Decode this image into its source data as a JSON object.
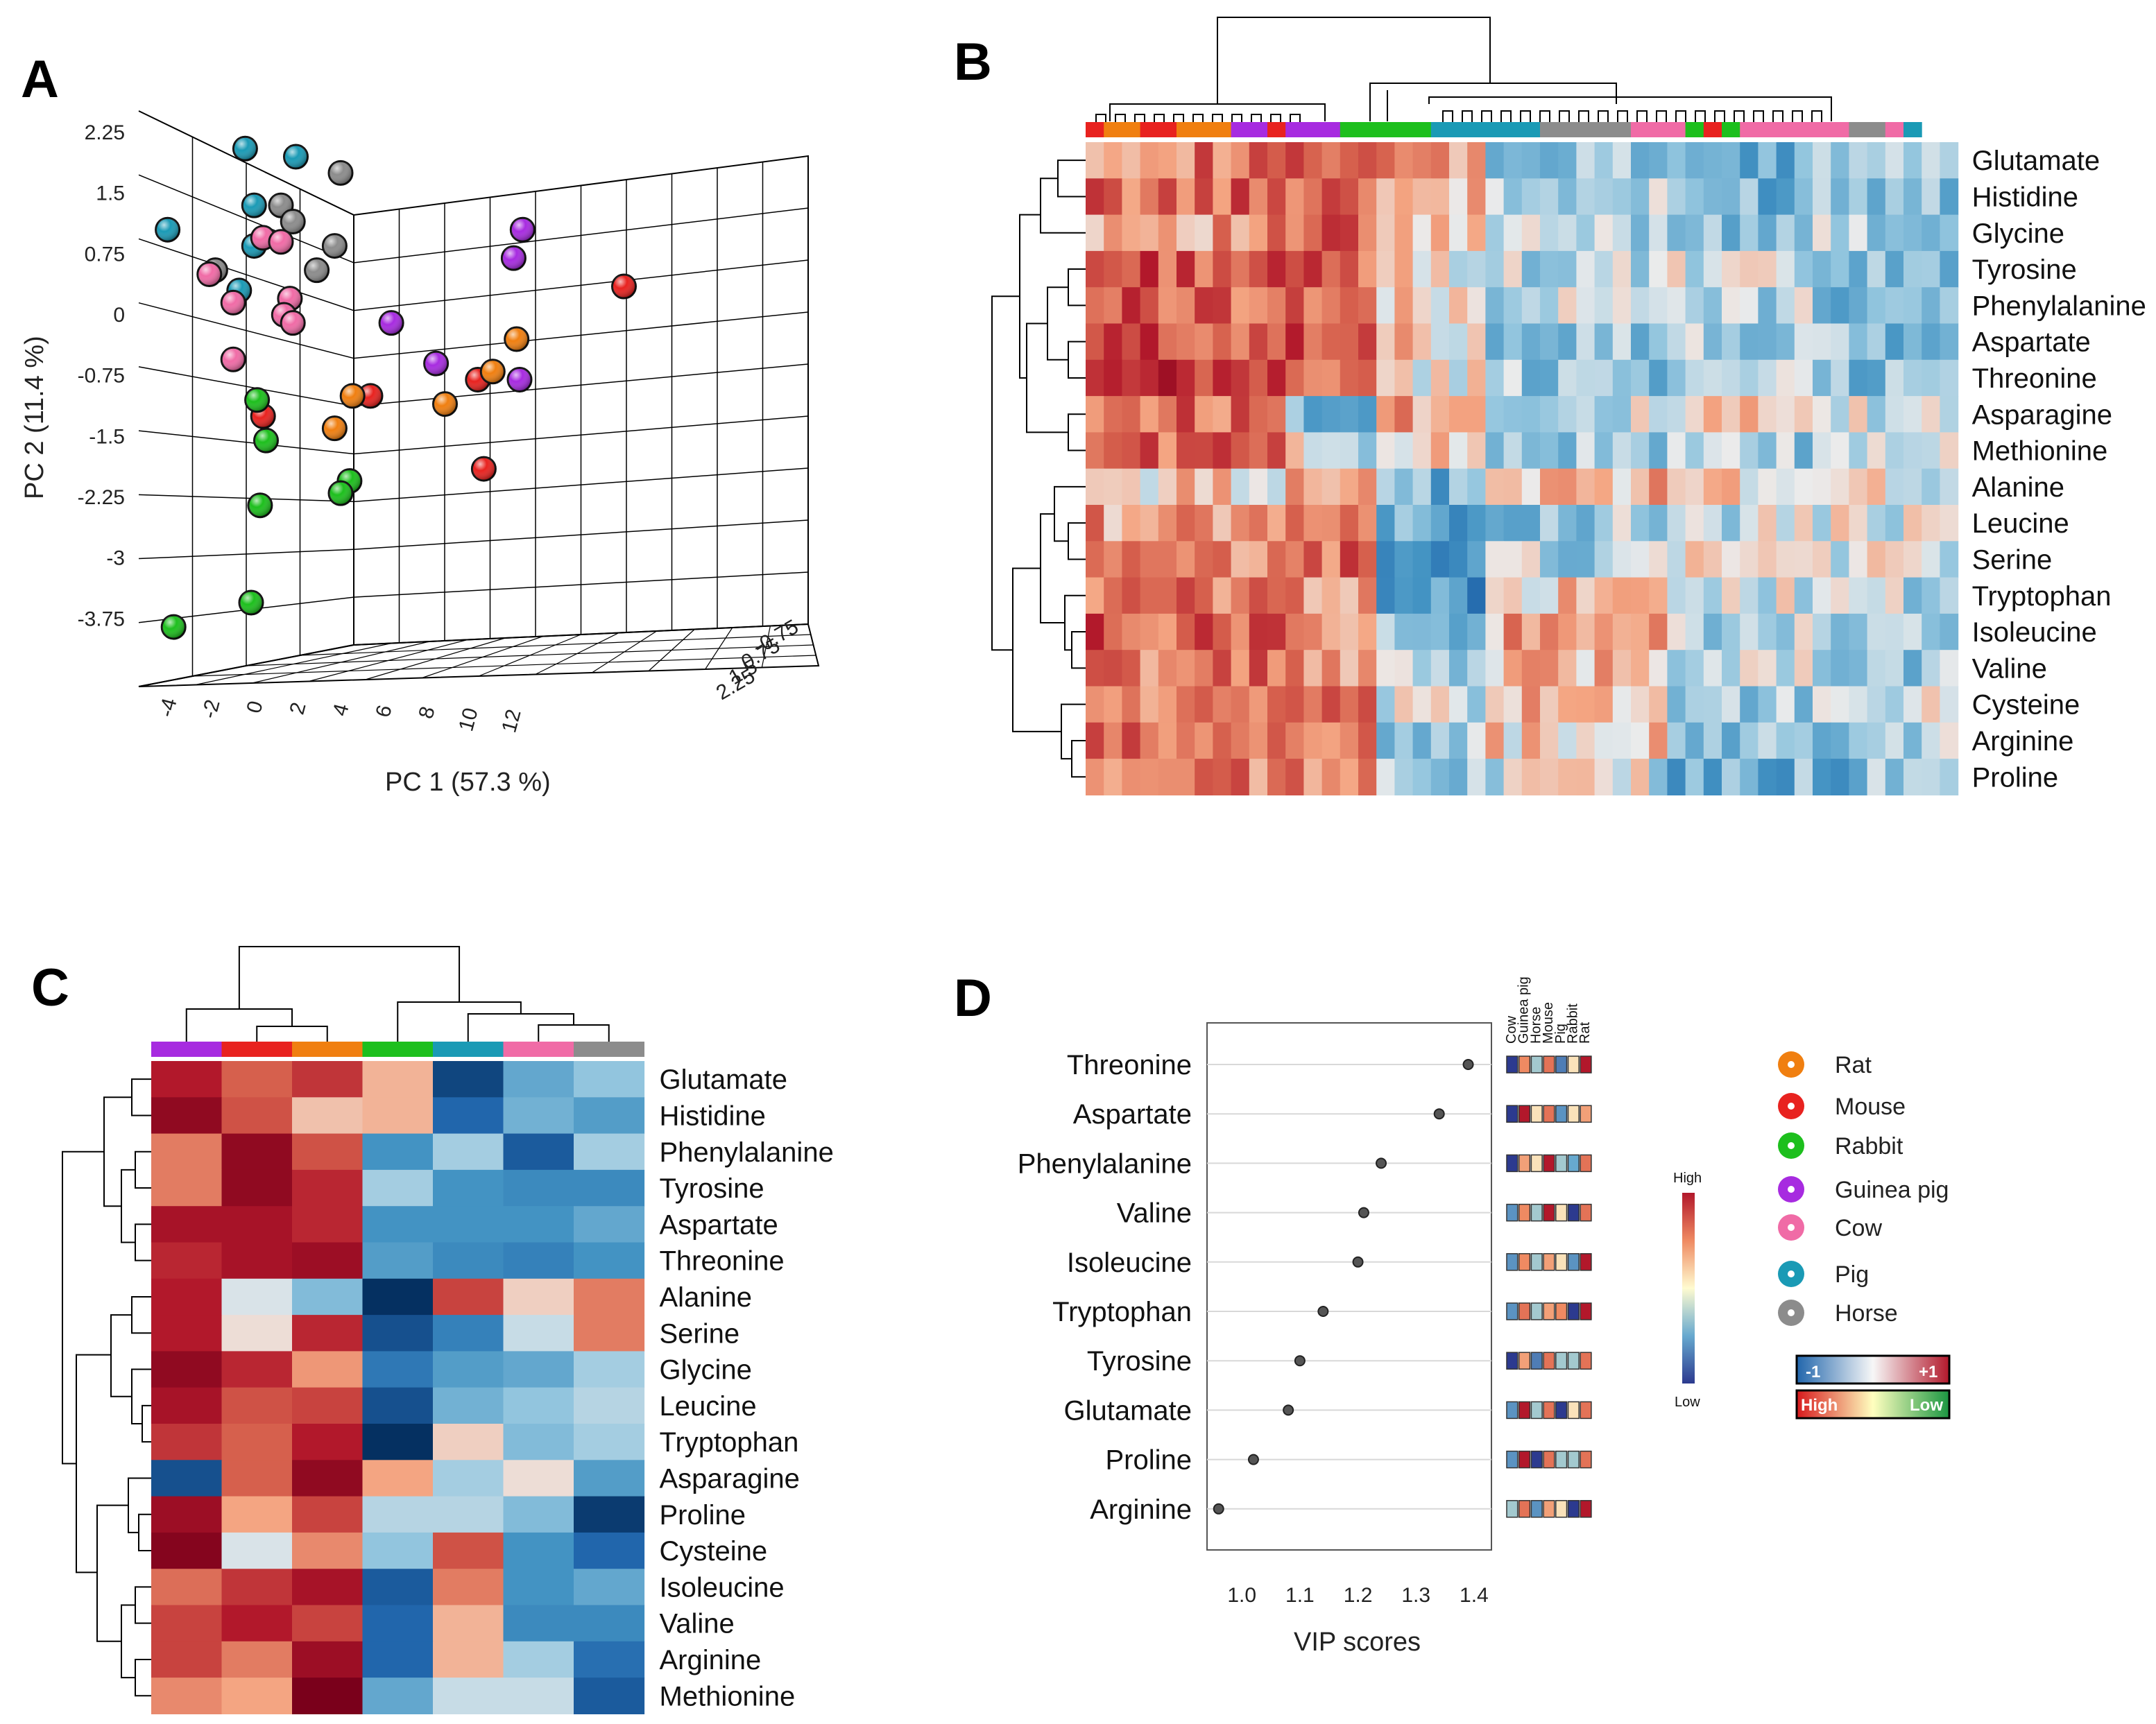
{
  "panels": {
    "a": "A",
    "b": "B",
    "c": "C",
    "d": "D"
  },
  "colors": {
    "Rat": "#f07f10",
    "Mouse": "#e8221f",
    "Rabbit": "#1dbf1d",
    "Guinea pig": "#a72be0",
    "Cow": "#f06ba6",
    "Pig": "#1a9ab5",
    "Horse": "#8c8c8c"
  },
  "chart_data": [
    {
      "type": "scatter",
      "title": "A",
      "xlabel": "PC 1 (57.3 %)",
      "ylabel": "PC 2 (11.4 %)",
      "x_ticks": [
        "-4",
        "-2",
        "0",
        "2",
        "4",
        "6",
        "8",
        "10",
        "12"
      ],
      "y_ticks": [
        "2.25",
        "1.5",
        "0.75",
        "0",
        "-0.75",
        "-1.5",
        "-2.25",
        "-3",
        "-3.75"
      ],
      "ylim": [
        -4.2,
        2.6
      ],
      "z_ticks": [
        "2.25",
        "1.5",
        "0.75",
        "-0.75"
      ],
      "points": [
        {
          "group": "Pig",
          "x": -3.8,
          "y": 1.05
        },
        {
          "group": "Pig",
          "x": -1.2,
          "y": 2.05
        },
        {
          "group": "Pig",
          "x": -0.9,
          "y": 1.35
        },
        {
          "group": "Pig",
          "x": 0.5,
          "y": 1.95
        },
        {
          "group": "Pig",
          "x": -0.9,
          "y": 0.85
        },
        {
          "group": "Pig",
          "x": -1.4,
          "y": 0.3
        },
        {
          "group": "Horse",
          "x": 2.0,
          "y": 1.75
        },
        {
          "group": "Horse",
          "x": 0.0,
          "y": 1.35
        },
        {
          "group": "Horse",
          "x": 0.4,
          "y": 1.15
        },
        {
          "group": "Horse",
          "x": 1.8,
          "y": 0.85
        },
        {
          "group": "Horse",
          "x": 1.2,
          "y": 0.55
        },
        {
          "group": "Horse",
          "x": -2.2,
          "y": 0.55
        },
        {
          "group": "Cow",
          "x": -2.4,
          "y": 0.5
        },
        {
          "group": "Cow",
          "x": -0.6,
          "y": 0.95
        },
        {
          "group": "Cow",
          "x": 0.0,
          "y": 0.9
        },
        {
          "group": "Cow",
          "x": 0.3,
          "y": 0.2
        },
        {
          "group": "Cow",
          "x": -1.6,
          "y": 0.15
        },
        {
          "group": "Cow",
          "x": 0.1,
          "y": 0.0
        },
        {
          "group": "Cow",
          "x": 0.4,
          "y": -0.1
        },
        {
          "group": "Cow",
          "x": -1.6,
          "y": -0.55
        },
        {
          "group": "Guinea pig",
          "x": 8.1,
          "y": 1.05
        },
        {
          "group": "Guinea pig",
          "x": 7.8,
          "y": 0.7
        },
        {
          "group": "Guinea pig",
          "x": 3.7,
          "y": -0.1
        },
        {
          "group": "Guinea pig",
          "x": 5.2,
          "y": -0.6
        },
        {
          "group": "Guinea pig",
          "x": 8.0,
          "y": -0.8
        },
        {
          "group": "Mouse",
          "x": 11.5,
          "y": 0.35
        },
        {
          "group": "Mouse",
          "x": 6.6,
          "y": -0.8
        },
        {
          "group": "Mouse",
          "x": 3.0,
          "y": -1.0
        },
        {
          "group": "Mouse",
          "x": -0.6,
          "y": -1.25
        },
        {
          "group": "Mouse",
          "x": 6.8,
          "y": -1.9
        },
        {
          "group": "Rat",
          "x": 7.9,
          "y": -0.3
        },
        {
          "group": "Rat",
          "x": 7.1,
          "y": -0.7
        },
        {
          "group": "Rat",
          "x": 2.4,
          "y": -1.0
        },
        {
          "group": "Rat",
          "x": 5.5,
          "y": -1.1
        },
        {
          "group": "Rat",
          "x": 1.8,
          "y": -1.4
        },
        {
          "group": "Rabbit",
          "x": -0.8,
          "y": -1.05
        },
        {
          "group": "Rabbit",
          "x": -0.5,
          "y": -1.55
        },
        {
          "group": "Rabbit",
          "x": 2.3,
          "y": -2.05
        },
        {
          "group": "Rabbit",
          "x": 2.0,
          "y": -2.2
        },
        {
          "group": "Rabbit",
          "x": -0.7,
          "y": -2.35
        },
        {
          "group": "Rabbit",
          "x": -1.0,
          "y": -3.55
        },
        {
          "group": "Rabbit",
          "x": -3.6,
          "y": -3.85
        }
      ]
    },
    {
      "type": "heatmap",
      "title": "B",
      "rows": [
        "Glutamate",
        "Histidine",
        "Glycine",
        "Tyrosine",
        "Phenylalanine",
        "Aspartate",
        "Threonine",
        "Asparagine",
        "Methionine",
        "Alanine",
        "Leucine",
        "Serine",
        "Tryptophan",
        "Isoleucine",
        "Valine",
        "Cysteine",
        "Arginine",
        "Proline"
      ],
      "column_groups": [
        "Mouse",
        "Rat",
        "Mouse",
        "Rat",
        "Guinea pig",
        "Mouse",
        "Guinea pig",
        "Rabbit",
        "Pig",
        "Horse",
        "Cow",
        "Rabbit",
        "Mouse",
        "Rabbit",
        "Cow",
        "Horse",
        "Cow",
        "Pig"
      ],
      "column_group_sizes": [
        1,
        2,
        2,
        3,
        2,
        1,
        3,
        5,
        6,
        5,
        3,
        1,
        1,
        1,
        6,
        2,
        1,
        1
      ],
      "block_means": [
        [
          0.4,
          0.5,
          0.25,
          -0.3,
          -0.4,
          -0.15
        ],
        [
          0.45,
          0.55,
          0.2,
          -0.2,
          -0.3,
          -0.2
        ],
        [
          0.3,
          0.45,
          0.1,
          -0.15,
          -0.2,
          -0.2
        ],
        [
          0.55,
          0.45,
          0.05,
          -0.15,
          -0.1,
          -0.35
        ],
        [
          0.5,
          0.45,
          0.05,
          -0.1,
          -0.15,
          -0.25
        ],
        [
          0.55,
          0.5,
          0.1,
          -0.2,
          -0.2,
          -0.3
        ],
        [
          0.6,
          0.45,
          0.0,
          -0.2,
          -0.2,
          -0.25
        ],
        [
          0.45,
          -0.25,
          0.3,
          -0.1,
          0.05,
          -0.1
        ],
        [
          0.5,
          -0.05,
          0.1,
          -0.2,
          -0.2,
          -0.15
        ],
        [
          0.1,
          0.35,
          -0.35,
          0.2,
          0.1,
          0.0
        ],
        [
          0.3,
          0.5,
          -0.4,
          -0.2,
          -0.1,
          -0.05
        ],
        [
          0.3,
          0.45,
          -0.45,
          -0.15,
          0.1,
          -0.05
        ],
        [
          0.4,
          0.35,
          -0.5,
          0.1,
          -0.05,
          -0.15
        ],
        [
          0.5,
          0.35,
          -0.3,
          0.25,
          -0.15,
          -0.3
        ],
        [
          0.4,
          0.35,
          -0.2,
          0.2,
          -0.05,
          -0.25
        ],
        [
          0.35,
          0.35,
          -0.1,
          0.2,
          -0.2,
          -0.1
        ],
        [
          0.4,
          0.4,
          -0.2,
          0.1,
          -0.3,
          -0.2
        ],
        [
          0.35,
          0.4,
          -0.2,
          -0.05,
          -0.35,
          -0.3
        ]
      ]
    },
    {
      "type": "heatmap",
      "title": "C",
      "columns": [
        "Guinea pig",
        "Mouse",
        "Rat",
        "Rabbit",
        "Pig",
        "Cow",
        "Horse"
      ],
      "rows": [
        "Glutamate",
        "Histidine",
        "Phenylalanine",
        "Tyrosine",
        "Aspartate",
        "Threonine",
        "Alanine",
        "Serine",
        "Glycine",
        "Leucine",
        "Tryptophan",
        "Asparagine",
        "Proline",
        "Cysteine",
        "Isoleucine",
        "Valine",
        "Arginine",
        "Methionine"
      ],
      "values": [
        [
          0.75,
          0.5,
          0.65,
          0.2,
          -0.9,
          -0.4,
          -0.25
        ],
        [
          0.9,
          0.55,
          0.15,
          0.2,
          -0.75,
          -0.35,
          -0.45
        ],
        [
          0.4,
          0.9,
          0.55,
          -0.5,
          -0.2,
          -0.8,
          -0.2
        ],
        [
          0.4,
          0.9,
          0.7,
          -0.2,
          -0.5,
          -0.55,
          -0.55
        ],
        [
          0.8,
          0.8,
          0.7,
          -0.5,
          -0.5,
          -0.5,
          -0.4
        ],
        [
          0.7,
          0.8,
          0.85,
          -0.45,
          -0.55,
          -0.6,
          -0.5
        ],
        [
          0.75,
          -0.05,
          -0.3,
          -1.0,
          0.6,
          0.1,
          0.4
        ],
        [
          0.75,
          0.05,
          0.7,
          -0.85,
          -0.6,
          -0.1,
          0.4
        ],
        [
          0.9,
          0.7,
          0.3,
          -0.65,
          -0.45,
          -0.4,
          -0.2
        ],
        [
          0.8,
          0.55,
          0.6,
          -0.85,
          -0.35,
          -0.25,
          -0.15
        ],
        [
          0.65,
          0.5,
          0.75,
          -1.0,
          0.1,
          -0.3,
          -0.2
        ],
        [
          -0.85,
          0.5,
          0.9,
          0.25,
          -0.2,
          0.05,
          -0.45
        ],
        [
          0.85,
          0.25,
          0.6,
          -0.15,
          -0.15,
          -0.3,
          -0.95
        ],
        [
          0.95,
          -0.05,
          0.35,
          -0.25,
          0.55,
          -0.5,
          -0.75
        ],
        [
          0.45,
          0.65,
          0.8,
          -0.8,
          0.4,
          -0.5,
          -0.4
        ],
        [
          0.6,
          0.75,
          0.6,
          -0.75,
          0.2,
          -0.55,
          -0.55
        ],
        [
          0.6,
          0.4,
          0.85,
          -0.75,
          0.2,
          -0.2,
          -0.7
        ],
        [
          0.35,
          0.25,
          1.0,
          -0.4,
          -0.1,
          -0.1,
          -0.8
        ]
      ]
    },
    {
      "type": "scatter",
      "title": "D",
      "xlabel": "VIP scores",
      "xlim": [
        0.94,
        1.43
      ],
      "x_ticks": [
        "1.0",
        "1.1",
        "1.2",
        "1.3",
        "1.4"
      ],
      "categories": [
        "Threonine",
        "Aspartate",
        "Phenylalanine",
        "Valine",
        "Isoleucine",
        "Tryptophan",
        "Tyrosine",
        "Glutamate",
        "Proline",
        "Arginine"
      ],
      "values": [
        1.39,
        1.34,
        1.24,
        1.21,
        1.2,
        1.14,
        1.1,
        1.08,
        1.02,
        0.96
      ],
      "mini_columns": [
        "Cow",
        "Guinea pig",
        "Horse",
        "Mouse",
        "Pig",
        "Rabbit",
        "Rat"
      ],
      "mini_heat": [
        [
          -1,
          0.5,
          -0.3,
          0.6,
          -0.7,
          0.1,
          1
        ],
        [
          -1,
          1,
          0.1,
          0.6,
          -0.6,
          0.1,
          0.4
        ],
        [
          -1,
          0.4,
          0.1,
          1,
          -0.3,
          -0.5,
          0.6
        ],
        [
          -0.6,
          0.5,
          -0.3,
          1,
          0.1,
          -1,
          0.6
        ],
        [
          -0.6,
          0.5,
          -0.3,
          0.4,
          0.1,
          -0.6,
          1
        ],
        [
          -0.6,
          0.6,
          -0.3,
          0.4,
          0.5,
          -1,
          1
        ],
        [
          -1,
          0.4,
          -0.7,
          0.6,
          -0.3,
          -0.3,
          0.6
        ],
        [
          -0.6,
          1,
          -0.3,
          0.6,
          -1,
          0.1,
          0.6
        ],
        [
          -0.6,
          1,
          -1,
          0.6,
          -0.3,
          -0.3,
          0.6
        ],
        [
          -0.3,
          0.6,
          -0.6,
          0.4,
          0.1,
          -1,
          1
        ]
      ],
      "colorbar_high": "High",
      "colorbar_low": "Low"
    }
  ],
  "legend": {
    "items": [
      "Rat",
      "Mouse",
      "Rabbit",
      "Guinea pig",
      "Cow",
      "Pig",
      "Horse"
    ],
    "scale1_left": "-1",
    "scale1_right": "+1",
    "scale2_left": "High",
    "scale2_right": "Low"
  }
}
